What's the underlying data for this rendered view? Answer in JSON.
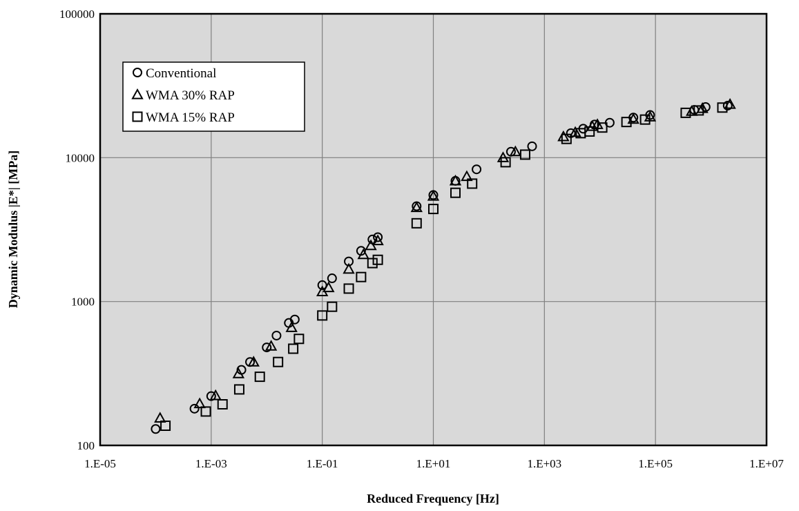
{
  "chart_data": {
    "type": "scatter",
    "xlabel": "Reduced Frequency [Hz]",
    "ylabel": "Dynamic Modulus |E*| [MPa]",
    "xscale": "log",
    "yscale": "log",
    "xlim": [
      1e-05,
      10000000
    ],
    "ylim": [
      100,
      100000
    ],
    "xticks": [
      "1.E-05",
      "1.E-03",
      "1.E-01",
      "1.E+01",
      "1.E+03",
      "1.E+05",
      "1.E+07"
    ],
    "yticks": [
      "100",
      "1000",
      "10000",
      "100000"
    ],
    "grid": true,
    "plot_background": "#d9d9d9",
    "legend_position": "top-left",
    "series": [
      {
        "name": "Conventional",
        "marker": "circle",
        "x": [
          0.0001,
          0.0005,
          0.001,
          0.0035,
          0.005,
          0.01,
          0.015,
          0.025,
          0.032,
          0.1,
          0.15,
          0.3,
          0.5,
          0.8,
          1,
          5,
          10,
          25,
          60,
          250,
          600,
          3000,
          5000,
          8000,
          15000,
          40000,
          80000,
          500000,
          800000,
          2000000
        ],
        "y": [
          130,
          180,
          220,
          335,
          380,
          480,
          580,
          710,
          750,
          1300,
          1450,
          1900,
          2250,
          2700,
          2800,
          4600,
          5500,
          6900,
          8300,
          11000,
          12000,
          14800,
          15900,
          17000,
          17500,
          19000,
          19800,
          21500,
          22500,
          23000
        ]
      },
      {
        "name": "WMA 30% RAP",
        "marker": "triangle",
        "x": [
          0.00012,
          0.00062,
          0.0012,
          0.0031,
          0.0058,
          0.012,
          0.028,
          0.1,
          0.13,
          0.3,
          0.55,
          0.75,
          1,
          5,
          10,
          25,
          40,
          180,
          300,
          2200,
          3600,
          7300,
          9000,
          40000,
          80000,
          450000,
          700000,
          2200000
        ],
        "y": [
          155,
          195,
          222,
          315,
          380,
          490,
          660,
          1170,
          1250,
          1680,
          2120,
          2450,
          2650,
          4500,
          5400,
          6900,
          7400,
          10000,
          11000,
          14000,
          15000,
          16500,
          17000,
          18500,
          19200,
          21000,
          22000,
          23500
        ]
      },
      {
        "name": "WMA 15% RAP",
        "marker": "square",
        "x": [
          0.00015,
          0.0008,
          0.0016,
          0.0032,
          0.0075,
          0.016,
          0.03,
          0.038,
          0.1,
          0.15,
          0.3,
          0.5,
          0.8,
          1,
          5,
          10,
          25,
          50,
          200,
          450,
          2500,
          4500,
          6500,
          11000,
          30000,
          65000,
          350000,
          600000,
          1600000
        ],
        "y": [
          137,
          172,
          193,
          245,
          300,
          380,
          470,
          550,
          800,
          920,
          1230,
          1480,
          1850,
          1950,
          3500,
          4400,
          5700,
          6600,
          9300,
          10500,
          13500,
          14800,
          15200,
          16200,
          17700,
          18400,
          20500,
          21300,
          22300
        ]
      }
    ]
  }
}
